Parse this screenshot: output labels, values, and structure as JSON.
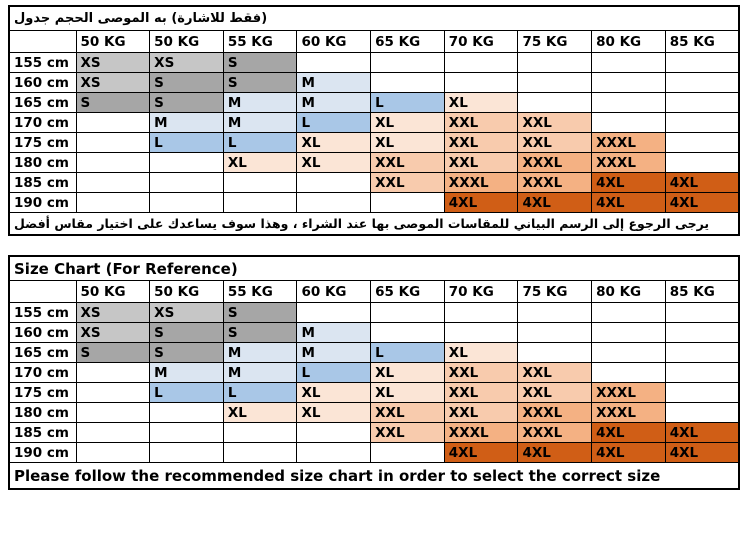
{
  "size_colors": {
    "XS": "#c6c6c6",
    "S": "#a6a6a6",
    "M": "#dbe5f1",
    "L": "#a9c7e7",
    "XL": "#fbe5d6",
    "XXL": "#f8cbad",
    "XXXL": "#f4b183",
    "4XL": "#d05e16"
  },
  "tables": [
    {
      "language": "arabic",
      "title": "جدول الحجم الموصى به (للاشارة فقط)",
      "weight_headers": [
        "50 KG",
        "50 KG",
        "55 KG",
        "60 KG",
        "65 KG",
        "70 KG",
        "75 KG",
        "80 KG",
        "85 KG"
      ],
      "rows": [
        {
          "height": "155 cm",
          "sizes": [
            "XS",
            "XS",
            "S",
            "",
            "",
            "",
            "",
            "",
            ""
          ]
        },
        {
          "height": "160 cm",
          "sizes": [
            "XS",
            "S",
            "S",
            "M",
            "",
            "",
            "",
            "",
            ""
          ]
        },
        {
          "height": "165 cm",
          "sizes": [
            "S",
            "S",
            "M",
            "M",
            "L",
            "XL",
            "",
            "",
            ""
          ]
        },
        {
          "height": "170 cm",
          "sizes": [
            "",
            "M",
            "M",
            "L",
            "XL",
            "XXL",
            "XXL",
            "",
            ""
          ]
        },
        {
          "height": "175 cm",
          "sizes": [
            "",
            "L",
            "L",
            "XL",
            "XL",
            "XXL",
            "XXL",
            "XXXL",
            ""
          ]
        },
        {
          "height": "180 cm",
          "sizes": [
            "",
            "",
            "XL",
            "XL",
            "XXL",
            "XXL",
            "XXXL",
            "XXXL",
            ""
          ]
        },
        {
          "height": "185 cm",
          "sizes": [
            "",
            "",
            "",
            "",
            "XXL",
            "XXXL",
            "XXXL",
            "4XL",
            "4XL"
          ]
        },
        {
          "height": "190 cm",
          "sizes": [
            "",
            "",
            "",
            "",
            "",
            "4XL",
            "4XL",
            "4XL",
            "4XL"
          ]
        }
      ],
      "note": "أفضل مقاس اختيار على يساعدك سوف وهذا ، الشراء عند بها الموصى للمقاسات البياني الرسم إلى الرجوع يرجى"
    },
    {
      "language": "english",
      "title": "Size Chart (For Reference)",
      "weight_headers": [
        "50 KG",
        "50 KG",
        "55 KG",
        "60 KG",
        "65 KG",
        "70 KG",
        "75 KG",
        "80 KG",
        "85 KG"
      ],
      "rows": [
        {
          "height": "155 cm",
          "sizes": [
            "XS",
            "XS",
            "S",
            "",
            "",
            "",
            "",
            "",
            ""
          ]
        },
        {
          "height": "160 cm",
          "sizes": [
            "XS",
            "S",
            "S",
            "M",
            "",
            "",
            "",
            "",
            ""
          ]
        },
        {
          "height": "165 cm",
          "sizes": [
            "S",
            "S",
            "M",
            "M",
            "L",
            "XL",
            "",
            "",
            ""
          ]
        },
        {
          "height": "170 cm",
          "sizes": [
            "",
            "M",
            "M",
            "L",
            "XL",
            "XXL",
            "XXL",
            "",
            ""
          ]
        },
        {
          "height": "175 cm",
          "sizes": [
            "",
            "L",
            "L",
            "XL",
            "XL",
            "XXL",
            "XXL",
            "XXXL",
            ""
          ]
        },
        {
          "height": "180 cm",
          "sizes": [
            "",
            "",
            "XL",
            "XL",
            "XXL",
            "XXL",
            "XXXL",
            "XXXL",
            ""
          ]
        },
        {
          "height": "185 cm",
          "sizes": [
            "",
            "",
            "",
            "",
            "XXL",
            "XXXL",
            "XXXL",
            "4XL",
            "4XL"
          ]
        },
        {
          "height": "190 cm",
          "sizes": [
            "",
            "",
            "",
            "",
            "",
            "4XL",
            "4XL",
            "4XL",
            "4XL"
          ]
        }
      ],
      "note": "Please follow the recommended size chart in order to select the correct size"
    }
  ]
}
